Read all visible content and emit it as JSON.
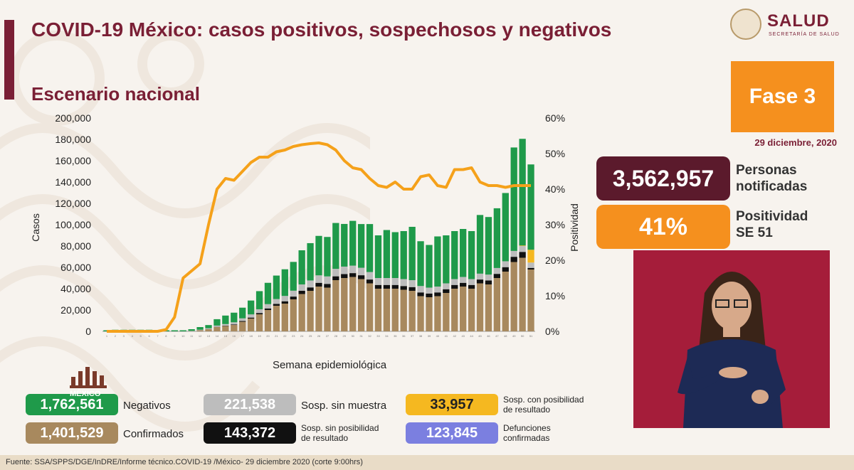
{
  "header": {
    "title": "COVID-19 México: casos positivos, sospechosos y negativos",
    "subtitle": "Escenario nacional"
  },
  "logo": {
    "name": "SALUD",
    "tagline": "SECRETARÍA DE SALUD",
    "icon": "coat-of-arms-icon"
  },
  "phase": {
    "label": "Fase 3",
    "date": "29 diciembre, 2020",
    "color": "#f5901e"
  },
  "stats": {
    "notified_value": "3,562,957",
    "notified_label_1": "Personas",
    "notified_label_2": "notificadas",
    "positivity_value": "41%",
    "positivity_label_1": "Positividad",
    "positivity_label_2": "SE 51"
  },
  "legend": {
    "negativos": {
      "value": "1,762,561",
      "label": "Negativos",
      "color": "#1f9a4a"
    },
    "confirmados": {
      "value": "1,401,529",
      "label": "Confirmados",
      "color": "#a8895e"
    },
    "sin_muestra": {
      "value": "221,538",
      "label": "Sosp. sin muestra",
      "color": "#bdbdbd"
    },
    "sin_posibilidad": {
      "value": "143,372",
      "label_1": "Sosp. sin posibilidad",
      "label_2": "de resultado",
      "color": "#111111"
    },
    "con_posibilidad": {
      "value": "33,957",
      "label_1": "Sosp. con posibilidad",
      "label_2": "de resultado",
      "color": "#f5b820"
    },
    "defunciones": {
      "value": "123,845",
      "label_1": "Defunciones",
      "label_2": "confirmadas",
      "color": "#7b7fe0"
    },
    "mexico_text": "MÉXICO"
  },
  "footer": "Fuente: SSA/SPPS/DGE/InDRE/Informe técnico.COVID-19 /México- 29 diciembre 2020 (corte 9:00hrs)",
  "chart_data": {
    "type": "bar",
    "stacked": true,
    "xlabel": "Semana epidemiológica",
    "ylabel": "Casos",
    "y2label": "Positividad",
    "ylim": [
      0,
      200000
    ],
    "y2lim": [
      0,
      60
    ],
    "yticks": [
      "0",
      "20,000",
      "40,000",
      "60,000",
      "80,000",
      "100,000",
      "120,000",
      "140,000",
      "160,000",
      "180,000",
      "200,000"
    ],
    "y2ticks": [
      "0%",
      "10%",
      "20%",
      "30%",
      "40%",
      "50%",
      "60%"
    ],
    "categories": [
      "1",
      "2",
      "3",
      "4",
      "5",
      "6",
      "7",
      "8",
      "9",
      "10",
      "11",
      "12",
      "13",
      "14",
      "15",
      "16",
      "17",
      "18",
      "19",
      "20",
      "21",
      "22",
      "23",
      "24",
      "25",
      "26",
      "27",
      "28",
      "29",
      "30",
      "31",
      "32",
      "33",
      "34",
      "35",
      "36",
      "37",
      "38",
      "39",
      "40",
      "41",
      "42",
      "43",
      "44",
      "45",
      "46",
      "47",
      "48",
      "49",
      "50",
      "51"
    ],
    "series": [
      {
        "name": "Confirmados",
        "color": "#a8895e",
        "values": [
          0,
          0,
          0,
          0,
          0,
          0,
          0,
          0,
          0,
          0,
          200,
          1000,
          2000,
          4000,
          5000,
          6000,
          9000,
          12000,
          16000,
          20000,
          24000,
          26000,
          30000,
          35000,
          38000,
          42000,
          41000,
          48000,
          50000,
          51000,
          49000,
          45000,
          40000,
          40000,
          40000,
          39000,
          38000,
          33000,
          32000,
          33000,
          36000,
          40000,
          42000,
          40000,
          45000,
          44000,
          50000,
          56000,
          65000,
          69000,
          58000
        ]
      },
      {
        "name": "Sosp. sin posibilidad de resultado",
        "color": "#111111",
        "values": [
          0,
          0,
          0,
          0,
          0,
          0,
          0,
          0,
          0,
          0,
          0,
          0,
          100,
          200,
          300,
          500,
          700,
          900,
          1200,
          1500,
          1800,
          2200,
          2600,
          3000,
          3200,
          3500,
          3500,
          3600,
          3700,
          3600,
          3600,
          3600,
          3500,
          3500,
          3500,
          3500,
          3500,
          3500,
          3500,
          3500,
          3500,
          3500,
          3500,
          3500,
          3600,
          3700,
          3900,
          4200,
          4900,
          5500,
          1500
        ]
      },
      {
        "name": "Sosp. sin muestra",
        "color": "#bdbdbd",
        "values": [
          0,
          0,
          0,
          0,
          0,
          0,
          0,
          0,
          0,
          0,
          300,
          500,
          800,
          1200,
          1500,
          2000,
          2500,
          3000,
          3500,
          4000,
          4500,
          5000,
          5500,
          6000,
          6500,
          7000,
          7000,
          7000,
          7000,
          7000,
          7000,
          7000,
          6500,
          6500,
          6500,
          6500,
          6500,
          6000,
          5500,
          5500,
          5500,
          5500,
          5500,
          5500,
          5500,
          5500,
          5500,
          5500,
          5500,
          5500,
          5000
        ]
      },
      {
        "name": "Sosp. con posibilidad de resultado",
        "color": "#f5b820",
        "values": [
          0,
          0,
          0,
          0,
          0,
          0,
          0,
          0,
          0,
          0,
          0,
          0,
          0,
          0,
          0,
          0,
          0,
          0,
          0,
          0,
          0,
          0,
          0,
          0,
          0,
          0,
          0,
          0,
          0,
          0,
          0,
          0,
          0,
          0,
          0,
          0,
          0,
          0,
          0,
          0,
          0,
          0,
          0,
          0,
          0,
          0,
          0,
          0,
          0,
          500,
          12000
        ]
      },
      {
        "name": "Negativos",
        "color": "#1f9a4a",
        "values": [
          1000,
          1500,
          1500,
          1500,
          1500,
          1500,
          1000,
          1000,
          1000,
          1000,
          1500,
          2500,
          3000,
          6000,
          8000,
          9000,
          10000,
          13000,
          17000,
          20000,
          22000,
          25000,
          27000,
          32000,
          35000,
          37000,
          37000,
          43000,
          40000,
          42000,
          41000,
          45000,
          40000,
          45000,
          43000,
          45000,
          50000,
          42000,
          40000,
          47000,
          45000,
          45000,
          45000,
          45000,
          55000,
          54000,
          56000,
          64000,
          97000,
          100000,
          80000
        ]
      }
    ],
    "line": {
      "name": "Positividad",
      "color": "#f5a11a",
      "values": [
        0,
        0,
        0,
        0,
        0,
        0,
        0,
        0.5,
        4,
        15,
        17,
        19,
        30,
        40,
        43,
        42.5,
        45,
        47.5,
        49,
        49,
        50.5,
        51,
        52,
        52.5,
        52.8,
        53,
        52.5,
        51,
        48,
        46,
        45.5,
        43,
        41,
        40.5,
        42,
        40,
        40,
        43.5,
        44,
        41,
        40.5,
        45.5,
        45.5,
        46,
        42,
        41,
        41,
        40.5,
        41,
        41,
        41
      ]
    }
  }
}
